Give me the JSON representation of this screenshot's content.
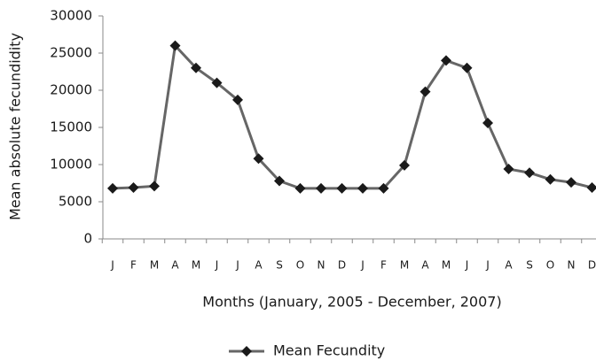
{
  "chart_data": {
    "type": "line",
    "x_label": "Months (January, 2005 - December, 2007)",
    "y_label": "Mean absolute fecundidity",
    "categories": [
      "J",
      "F",
      "M",
      "A",
      "M",
      "J",
      "J",
      "A",
      "S",
      "O",
      "N",
      "D",
      "J",
      "F",
      "M",
      "A",
      "M",
      "J",
      "J",
      "A",
      "S",
      "O",
      "N",
      "D"
    ],
    "series": [
      {
        "name": "Mean Fecundity",
        "color": "#666666",
        "marker_color": "#1a1a1a",
        "values": [
          6800,
          6900,
          7100,
          26000,
          23000,
          21000,
          18700,
          10800,
          7800,
          6800,
          6800,
          6800,
          6800,
          6800,
          9900,
          19800,
          24000,
          23000,
          15600,
          9400,
          8900,
          8000,
          7600,
          6900
        ]
      }
    ],
    "ylim": [
      0,
      30000
    ],
    "yticks": [
      0,
      5000,
      10000,
      15000,
      20000,
      25000,
      30000
    ],
    "legend": "bottom"
  }
}
